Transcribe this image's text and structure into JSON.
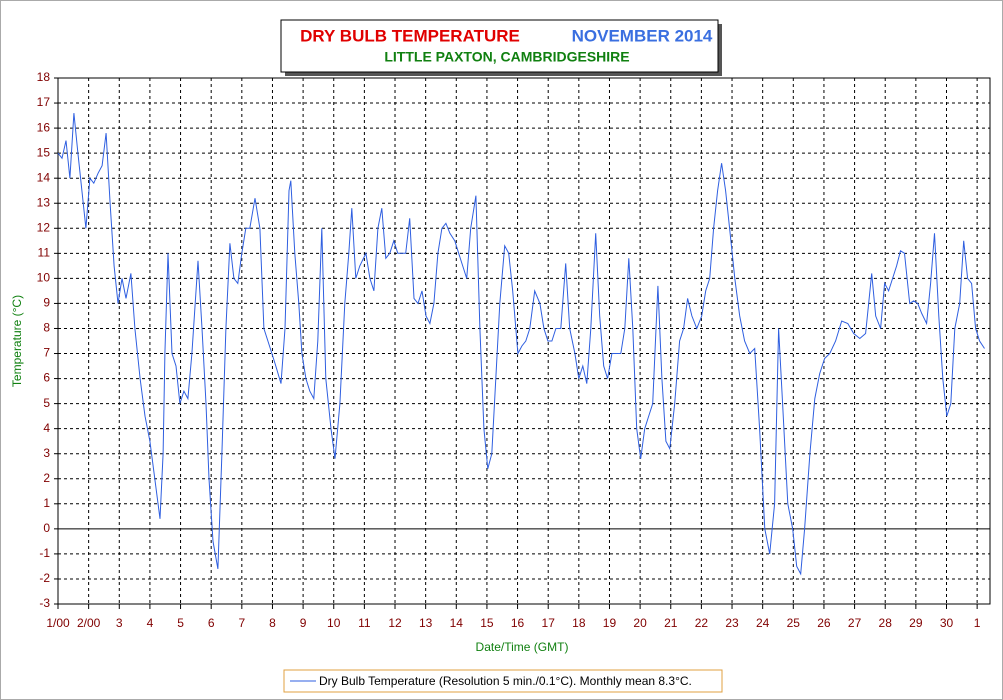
{
  "chart_data": {
    "type": "line",
    "title": "DRY BULB TEMPERATURE",
    "title_period": "NOVEMBER 2014",
    "subtitle": "LITTLE PAXTON, CAMBRIDGESHIRE",
    "xlabel": "Date/Time (GMT)",
    "ylabel": "Temperature (°C)",
    "xlim": [
      1,
      31.42
    ],
    "ylim": [
      -3,
      18
    ],
    "xticks": [
      {
        "value": 1,
        "label": "1/00"
      },
      {
        "value": 2,
        "label": "2/00"
      },
      3,
      4,
      5,
      6,
      7,
      8,
      9,
      10,
      11,
      12,
      13,
      14,
      15,
      16,
      17,
      18,
      19,
      20,
      21,
      22,
      23,
      24,
      25,
      26,
      27,
      28,
      29,
      30,
      {
        "value": 31,
        "label": "1"
      }
    ],
    "yticks": [
      -3,
      -2,
      -1,
      0,
      1,
      2,
      3,
      4,
      5,
      6,
      7,
      8,
      9,
      10,
      11,
      12,
      13,
      14,
      15,
      16,
      17,
      18
    ],
    "grid": true,
    "x": [
      1.0,
      1.13,
      1.26,
      1.39,
      1.52,
      1.65,
      1.78,
      1.91,
      2.04,
      2.17,
      2.31,
      2.44,
      2.57,
      2.7,
      2.83,
      2.96,
      3.09,
      3.22,
      3.38,
      3.51,
      3.68,
      3.84,
      4.0,
      4.16,
      4.33,
      4.43,
      4.49,
      4.59,
      4.72,
      4.85,
      4.98,
      5.11,
      5.24,
      5.37,
      5.57,
      5.7,
      5.83,
      5.93,
      6.06,
      6.22,
      6.35,
      6.48,
      6.61,
      6.74,
      6.87,
      7.0,
      7.13,
      7.26,
      7.43,
      7.59,
      7.72,
      7.85,
      7.98,
      8.11,
      8.28,
      8.41,
      8.54,
      8.6,
      8.73,
      8.86,
      8.96,
      9.09,
      9.22,
      9.35,
      9.48,
      9.61,
      9.74,
      9.91,
      10.04,
      10.2,
      10.36,
      10.49,
      10.59,
      10.72,
      10.85,
      11.05,
      11.18,
      11.31,
      11.44,
      11.57,
      11.7,
      11.83,
      11.96,
      12.09,
      12.22,
      12.35,
      12.48,
      12.62,
      12.75,
      12.88,
      13.01,
      13.14,
      13.27,
      13.4,
      13.53,
      13.66,
      13.79,
      13.95,
      14.08,
      14.21,
      14.34,
      14.47,
      14.64,
      14.77,
      14.9,
      15.03,
      15.16,
      15.29,
      15.42,
      15.58,
      15.71,
      15.84,
      16.01,
      16.14,
      16.27,
      16.4,
      16.56,
      16.73,
      16.86,
      16.99,
      17.12,
      17.25,
      17.41,
      17.57,
      17.7,
      17.87,
      18.0,
      18.13,
      18.26,
      18.39,
      18.55,
      18.68,
      18.81,
      18.94,
      19.08,
      19.24,
      19.37,
      19.5,
      19.63,
      19.76,
      19.89,
      20.02,
      20.15,
      20.28,
      20.41,
      20.58,
      20.71,
      20.84,
      20.97,
      21.13,
      21.29,
      21.42,
      21.55,
      21.69,
      21.85,
      22.01,
      22.14,
      22.27,
      22.4,
      22.53,
      22.66,
      22.79,
      22.92,
      23.09,
      23.25,
      23.41,
      23.58,
      23.74,
      23.9,
      24.07,
      24.23,
      24.39,
      24.52,
      24.65,
      24.82,
      24.98,
      25.11,
      25.24,
      25.37,
      25.54,
      25.7,
      25.86,
      26.02,
      26.19,
      26.38,
      26.58,
      26.78,
      26.97,
      27.17,
      27.36,
      27.56,
      27.69,
      27.85,
      27.98,
      28.11,
      28.24,
      28.37,
      28.5,
      28.63,
      28.8,
      28.93,
      29.06,
      29.19,
      29.35,
      29.48,
      29.61,
      29.75,
      29.88,
      30.01,
      30.14,
      30.27,
      30.43,
      30.56,
      30.69,
      30.82,
      30.95,
      31.08,
      31.24
    ],
    "series": [
      {
        "name": "Dry Bulb Temperature (Resolution 5 min./0.1°C). Monthly mean 8.3°C.",
        "color": "#2f5fe0",
        "values": [
          15,
          14.8,
          15.5,
          14,
          16.6,
          15,
          13.5,
          12,
          14,
          13.8,
          14.2,
          14.5,
          15.8,
          13,
          10.5,
          9,
          10,
          9.2,
          10.2,
          8,
          6,
          4.5,
          3.5,
          2,
          0.4,
          3,
          7,
          11,
          7,
          6.5,
          5,
          5.5,
          5.2,
          7,
          10.7,
          8,
          5,
          2,
          -0.5,
          -1.6,
          3,
          8,
          11.4,
          10,
          9.8,
          11,
          12,
          12,
          13.2,
          12,
          8,
          7.5,
          7,
          6.5,
          5.8,
          8,
          13.5,
          13.9,
          11,
          9,
          7,
          6,
          5.5,
          5.2,
          7.5,
          12,
          6,
          4,
          2.8,
          5,
          9,
          11,
          12.8,
          10,
          10.5,
          11,
          10,
          9.5,
          12,
          12.8,
          10.8,
          11,
          11.5,
          11,
          11,
          11,
          12.4,
          9.2,
          9,
          9.5,
          8.5,
          8.2,
          9,
          11,
          12,
          12.2,
          11.8,
          11.5,
          11,
          10.5,
          10,
          12,
          13.3,
          8,
          4,
          2.4,
          3,
          6,
          9,
          11.3,
          11,
          9.5,
          7,
          7.3,
          7.5,
          8,
          9.5,
          9,
          8,
          7.5,
          7.5,
          8,
          8,
          10.6,
          8,
          7,
          6,
          6.5,
          5.8,
          8,
          11.8,
          8.5,
          6.5,
          6,
          7,
          7,
          7,
          8,
          10.8,
          8,
          4,
          2.8,
          4,
          4.5,
          5,
          9.7,
          6,
          3.5,
          3.2,
          5,
          7.5,
          8,
          9.2,
          8.5,
          8,
          8.5,
          9.5,
          10,
          12,
          13.5,
          14.6,
          13.5,
          12,
          10,
          8.5,
          7.5,
          7,
          7.2,
          4,
          0,
          -1,
          1,
          8,
          5,
          1,
          0,
          -1.5,
          -1.8,
          0,
          3,
          5.2,
          6.2,
          6.8,
          7,
          7.5,
          8.3,
          8.2,
          7.8,
          7.6,
          7.8,
          10.2,
          8.5,
          8,
          9.8,
          9.5,
          10,
          10.5,
          11.1,
          11,
          9,
          9.1,
          9,
          8.6,
          8.2,
          9.8,
          11.8,
          8.5,
          6,
          4.5,
          5,
          8,
          9,
          11.5,
          10,
          9.8,
          8,
          7.5,
          7.2
        ]
      }
    ]
  }
}
